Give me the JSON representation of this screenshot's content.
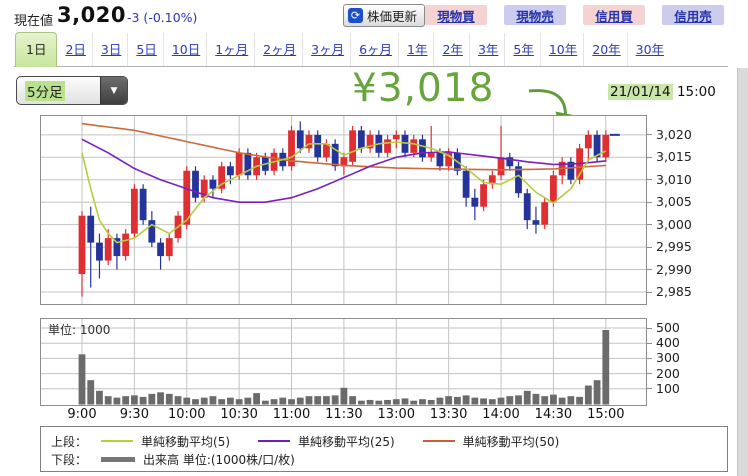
{
  "header": {
    "label": "現在値",
    "price": "3,020",
    "change": "-3 (-0.10%)",
    "refresh_button": "株価更新",
    "trade_buttons": [
      {
        "label": "現物買",
        "style": "buy"
      },
      {
        "label": "現物売",
        "style": "sell"
      },
      {
        "label": "信用買",
        "style": "buy"
      },
      {
        "label": "信用売",
        "style": "sell"
      }
    ]
  },
  "tabs": {
    "active": "1日",
    "items": [
      "1日",
      "2日",
      "3日",
      "5日",
      "10日",
      "1ヶ月",
      "2ヶ月",
      "3ヶ月",
      "6ヶ月",
      "1年",
      "2年",
      "3年",
      "5年",
      "10年",
      "20年",
      "30年"
    ]
  },
  "controls": {
    "interval": "5分足"
  },
  "annotation": {
    "price_label": "¥3,018",
    "date": "21/01/14",
    "time": "15:00"
  },
  "chart_data": {
    "type": "candlestick",
    "interval": "5min",
    "x_labels": [
      "9:00",
      "9:30",
      "10:00",
      "10:30",
      "11:00",
      "11:30",
      "13:00",
      "13:30",
      "14:00",
      "14:30",
      "15:00"
    ],
    "y_axis": {
      "labels": [
        "3,020",
        "3,015",
        "3,010",
        "3,005",
        "3,000",
        "2,995",
        "2,990",
        "2,985"
      ],
      "values": [
        3020,
        3015,
        3010,
        3005,
        3000,
        2995,
        2990,
        2985
      ],
      "min": 2982.3,
      "max": 3024.2
    },
    "volume_axis": {
      "unit_label": "単位: 1000",
      "labels": [
        "500",
        "400",
        "300",
        "200",
        "100"
      ],
      "values": [
        500,
        400,
        300,
        200,
        100
      ],
      "max": 560
    },
    "current_price": 3020,
    "candles_ohlc": [
      [
        2989,
        3003,
        2984,
        3002
      ],
      [
        3002,
        3004,
        2986,
        2996
      ],
      [
        2996,
        2998,
        2988,
        2992
      ],
      [
        2992,
        2999,
        2991,
        2997
      ],
      [
        2997,
        2998,
        2990,
        2993
      ],
      [
        2993,
        2999,
        2992,
        2998
      ],
      [
        2998,
        3009,
        2997,
        3008
      ],
      [
        3008,
        3009,
        3000,
        3001
      ],
      [
        3001,
        3003,
        2995,
        2996
      ],
      [
        2996,
        2997,
        2990,
        2993
      ],
      [
        2993,
        2998,
        2992,
        2997
      ],
      [
        2997,
        3003,
        2996,
        3002
      ],
      [
        3000,
        3013,
        2999,
        3012
      ],
      [
        3012,
        3013,
        3005,
        3006
      ],
      [
        3006,
        3011,
        3005,
        3010
      ],
      [
        3010,
        3011,
        3006,
        3008
      ],
      [
        3008,
        3014,
        3007,
        3013
      ],
      [
        3013,
        3014,
        3009,
        3011
      ],
      [
        3011,
        3017,
        3010,
        3016
      ],
      [
        3016,
        3017,
        3010,
        3011
      ],
      [
        3011,
        3016,
        3010,
        3015
      ],
      [
        3015,
        3016,
        3011,
        3012
      ],
      [
        3012,
        3017,
        3011,
        3016
      ],
      [
        3016,
        3017,
        3012,
        3013
      ],
      [
        3013,
        3022,
        3012,
        3021
      ],
      [
        3021,
        3023,
        3016,
        3017
      ],
      [
        3017,
        3021,
        3016,
        3020
      ],
      [
        3020,
        3021,
        3014,
        3015
      ],
      [
        3015,
        3019,
        3014,
        3018
      ],
      [
        3018,
        3019,
        3012,
        3013
      ],
      [
        3013,
        3016,
        3011,
        3015
      ],
      [
        3014,
        3022,
        3013,
        3021
      ],
      [
        3021,
        3022,
        3016,
        3017
      ],
      [
        3017,
        3021,
        3016,
        3020
      ],
      [
        3020,
        3021,
        3015,
        3016
      ],
      [
        3016,
        3020,
        3015,
        3019
      ],
      [
        3019,
        3021,
        3017,
        3020
      ],
      [
        3020,
        3021,
        3015,
        3016
      ],
      [
        3016,
        3020,
        3015,
        3019
      ],
      [
        3019,
        3020,
        3014,
        3015
      ],
      [
        3015,
        3022,
        3014,
        3016
      ],
      [
        3016,
        3017,
        3012,
        3013
      ],
      [
        3013,
        3017,
        3012,
        3016
      ],
      [
        3016,
        3017,
        3011,
        3012
      ],
      [
        3012,
        3013,
        3004,
        3006
      ],
      [
        3006,
        3008,
        3001,
        3004
      ],
      [
        3004,
        3010,
        3003,
        3009
      ],
      [
        3009,
        3012,
        3008,
        3011
      ],
      [
        3011,
        3022,
        3010,
        3015
      ],
      [
        3015,
        3016,
        3012,
        3013
      ],
      [
        3013,
        3014,
        3006,
        3007
      ],
      [
        3007,
        3008,
        2999,
        3001
      ],
      [
        3001,
        3004,
        2998,
        3000
      ],
      [
        3000,
        3006,
        2999,
        3005
      ],
      [
        3005,
        3012,
        3004,
        3011
      ],
      [
        3011,
        3015,
        3009,
        3014
      ],
      [
        3014,
        3015,
        3009,
        3010
      ],
      [
        3010,
        3018,
        3009,
        3017
      ],
      [
        3017,
        3021,
        3014,
        3020
      ],
      [
        3020,
        3021,
        3014,
        3015
      ],
      [
        3015,
        3021,
        3014,
        3020
      ]
    ],
    "volumes": [
      330,
      160,
      90,
      55,
      45,
      55,
      60,
      50,
      70,
      80,
      70,
      55,
      45,
      35,
      45,
      55,
      35,
      45,
      35,
      45,
      75,
      25,
      35,
      45,
      35,
      45,
      55,
      55,
      55,
      60,
      110,
      55,
      25,
      30,
      25,
      30,
      35,
      40,
      25,
      35,
      30,
      45,
      55,
      50,
      60,
      45,
      40,
      35,
      45,
      55,
      60,
      90,
      70,
      55,
      65,
      45,
      55,
      50,
      125,
      160,
      490
    ],
    "ma5_anchors": [
      [
        0,
        3016
      ],
      [
        1,
        3008
      ],
      [
        2,
        3001
      ],
      [
        3,
        2998
      ],
      [
        4,
        2996
      ],
      [
        6,
        2997
      ],
      [
        8,
        3000
      ],
      [
        10,
        2998
      ],
      [
        12,
        3001
      ],
      [
        14,
        3006
      ],
      [
        16,
        3009
      ],
      [
        18,
        3011
      ],
      [
        20,
        3013
      ],
      [
        22,
        3014
      ],
      [
        24,
        3015
      ],
      [
        26,
        3018
      ],
      [
        28,
        3018
      ],
      [
        30,
        3015.5
      ],
      [
        32,
        3017
      ],
      [
        34,
        3018
      ],
      [
        36,
        3018.4
      ],
      [
        38,
        3018
      ],
      [
        40,
        3017
      ],
      [
        42,
        3015.4
      ],
      [
        44,
        3012.6
      ],
      [
        46,
        3009.4
      ],
      [
        48,
        3009
      ],
      [
        50,
        3011
      ],
      [
        52,
        3007.2
      ],
      [
        54,
        3004.8
      ],
      [
        56,
        3008
      ],
      [
        58,
        3014.4
      ],
      [
        60,
        3016.4
      ]
    ],
    "ma25_anchors": [
      [
        0,
        3019
      ],
      [
        3,
        3016
      ],
      [
        6,
        3012.5
      ],
      [
        9,
        3010
      ],
      [
        12,
        3008
      ],
      [
        15,
        3006
      ],
      [
        18,
        3005
      ],
      [
        21,
        3005
      ],
      [
        24,
        3006
      ],
      [
        27,
        3008
      ],
      [
        30,
        3010.5
      ],
      [
        33,
        3013
      ],
      [
        36,
        3015
      ],
      [
        39,
        3016
      ],
      [
        42,
        3016.2
      ],
      [
        45,
        3015.5
      ],
      [
        48,
        3014.8
      ],
      [
        51,
        3014
      ],
      [
        54,
        3013.4
      ],
      [
        57,
        3013.6
      ],
      [
        60,
        3014.2
      ]
    ],
    "ma50_anchors": [
      [
        0,
        3022.5
      ],
      [
        6,
        3021
      ],
      [
        12,
        3018.5
      ],
      [
        18,
        3016
      ],
      [
        24,
        3014.2
      ],
      [
        30,
        3013.2
      ],
      [
        36,
        3012.6
      ],
      [
        42,
        3012.4
      ],
      [
        48,
        3012.2
      ],
      [
        54,
        3012.4
      ],
      [
        60,
        3013.2
      ]
    ],
    "legend": {
      "upper_label": "上段：",
      "upper_items": [
        {
          "name": "単純移動平均(5)",
          "color": "#b8cc3e"
        },
        {
          "name": "単純移動平均(25)",
          "color": "#6a22bd"
        },
        {
          "name": "単純移動平均(50)",
          "color": "#c65f33"
        }
      ],
      "lower_label": "下段：",
      "lower_item": {
        "name": "出来高 単位:(1000株/口/枚)",
        "color": "#777777"
      }
    },
    "colors": {
      "up": "#df2f33",
      "down": "#24349b",
      "volume": "#6b6b6b",
      "grid": "#c3c3c3",
      "border": "#8d8d8d",
      "ma5": "#b8cc3e",
      "ma25": "#7a1fc0",
      "ma50": "#cc6a3a",
      "annotation_green": "#69a53e",
      "arrow_green": "#5f9c35",
      "highlight_green": "#c9e7a8"
    }
  }
}
